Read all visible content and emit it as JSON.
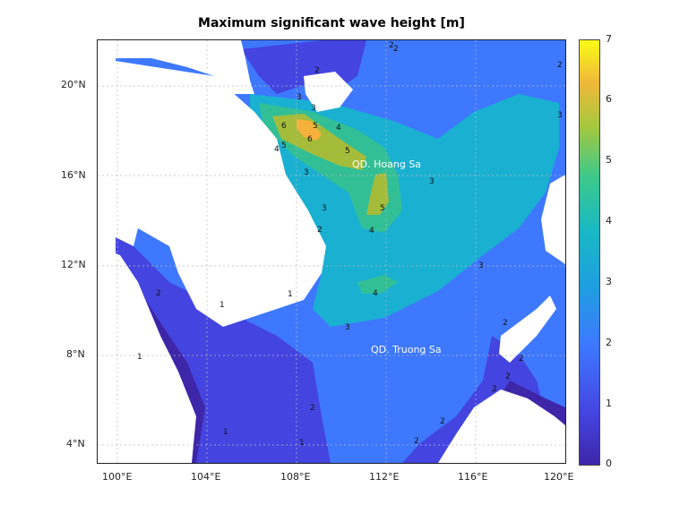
{
  "title": "Maximum significant wave height [m]",
  "x_ticks": [
    "100°E",
    "104°E",
    "108°E",
    "112°E",
    "116°E",
    "120°E"
  ],
  "y_ticks": [
    "20°N",
    "16°N",
    "12°N",
    "8°N",
    "4°N"
  ],
  "colorbar": {
    "min": 0,
    "max": 7,
    "ticks": [
      "7",
      "6",
      "5",
      "4",
      "3",
      "2",
      "1",
      "0"
    ]
  },
  "place_labels": [
    {
      "text": "QD. Hoang Sa"
    },
    {
      "text": "QD. Truong Sa"
    }
  ],
  "contour_labels": [
    "2",
    "2",
    "3",
    "3",
    "4",
    "5",
    "6",
    "5",
    "6",
    "5",
    "4",
    "3",
    "3",
    "3",
    "2",
    "5",
    "4",
    "4",
    "3",
    "3",
    "2",
    "2",
    "2",
    "1",
    "2",
    "1",
    "2",
    "1",
    "2",
    "2",
    "2",
    "1",
    "2",
    "1",
    "3",
    "2"
  ],
  "colors": {
    "land": "#ffffff",
    "level_0_1": "#3e26a8",
    "level_1_2": "#4444e0",
    "level_2_3": "#3e78ff",
    "level_3_4": "#1ab0d2",
    "level_4_5": "#33bf96",
    "level_5_6": "#a4bc3a",
    "level_6_7": "#f6b13c"
  }
}
